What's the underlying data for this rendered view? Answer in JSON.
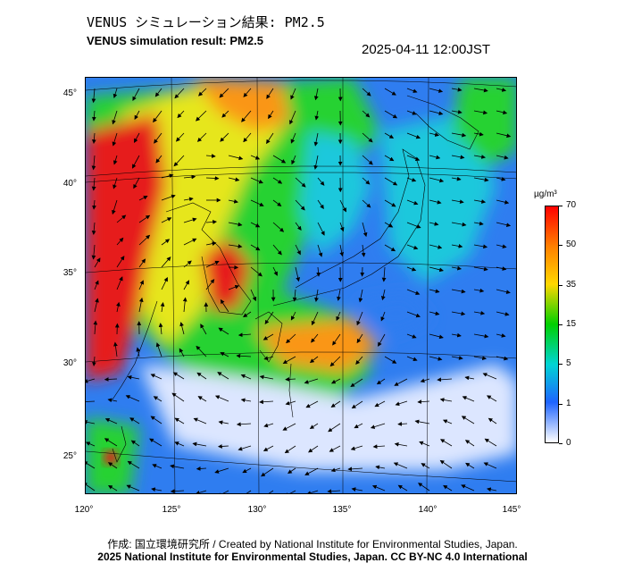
{
  "title_jp": "VENUS シミュレーション結果: PM2.5",
  "title_en": "VENUS simulation result: PM2.5",
  "timestamp": "2025-04-11 12:00JST",
  "lat_labels": [
    "45°",
    "40°",
    "35°",
    "30°",
    "25°"
  ],
  "lon_labels": [
    "120°",
    "125°",
    "130°",
    "135°",
    "140°",
    "145°"
  ],
  "colorbar": {
    "unit": "µg/m³",
    "labels": [
      "70",
      "50",
      "35",
      "15",
      "5",
      "1",
      "0"
    ],
    "colors": [
      "#ff0000",
      "#ff8000",
      "#ffd700",
      "#00d000",
      "#00d4d4",
      "#1e64ff",
      "#ffffff"
    ]
  },
  "footer": {
    "credit": "作成: 国立環境研究所 / Created by National Institute for Environmental Studies, Japan.",
    "license": "2025 National Institute for Environmental Studies, Japan. CC BY-NC 4.0 International"
  },
  "palette": {
    "background_blue": "#2f7df0",
    "green": "#28d232",
    "cyan": "#1ec8dc",
    "yellow": "#e6e61e",
    "orange": "#fa9614",
    "red": "#e61e1e",
    "pale": "#dce6ff"
  }
}
